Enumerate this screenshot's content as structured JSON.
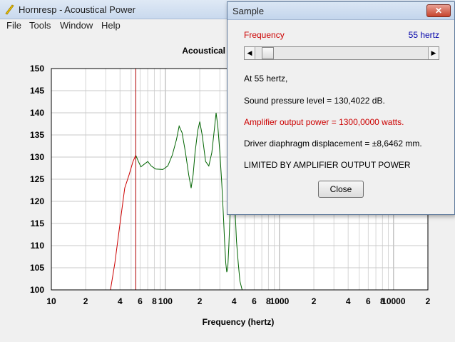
{
  "window": {
    "title": "Hornresp - Acoustical Power"
  },
  "menu": {
    "items": [
      "File",
      "Tools",
      "Window",
      "Help"
    ]
  },
  "chart_data": {
    "type": "line",
    "title": "Acoustical Power (dB)",
    "xlabel": "Frequency (hertz)",
    "ylabel": "",
    "x_scale": "log",
    "xlim": [
      10,
      20000
    ],
    "ylim": [
      100,
      150
    ],
    "yticks": [
      100,
      105,
      110,
      115,
      120,
      125,
      130,
      135,
      140,
      145,
      150
    ],
    "xtick_labels": [
      {
        "f": 10,
        "t": "10"
      },
      {
        "f": 20,
        "t": "2"
      },
      {
        "f": 40,
        "t": "4"
      },
      {
        "f": 60,
        "t": "6"
      },
      {
        "f": 80,
        "t": "8"
      },
      {
        "f": 100,
        "t": "100"
      },
      {
        "f": 200,
        "t": "2"
      },
      {
        "f": 400,
        "t": "4"
      },
      {
        "f": 600,
        "t": "6"
      },
      {
        "f": 800,
        "t": "8"
      },
      {
        "f": 1000,
        "t": "1000"
      },
      {
        "f": 2000,
        "t": "2"
      },
      {
        "f": 4000,
        "t": "4"
      },
      {
        "f": 6000,
        "t": "6"
      },
      {
        "f": 8000,
        "t": "8"
      },
      {
        "f": 10000,
        "t": "10000"
      },
      {
        "f": 20000,
        "t": "2"
      }
    ],
    "grid": true,
    "marker_frequency": 55,
    "series": [
      {
        "color": "#cc0000",
        "points": [
          [
            33,
            100
          ],
          [
            36,
            106
          ],
          [
            40,
            115
          ],
          [
            44,
            123
          ],
          [
            48,
            126
          ],
          [
            52,
            129
          ],
          [
            55,
            130.4
          ]
        ]
      },
      {
        "color": "#006400",
        "points": [
          [
            55,
            130.4
          ],
          [
            58,
            129
          ],
          [
            61,
            127.8
          ],
          [
            66,
            128.5
          ],
          [
            70,
            129
          ],
          [
            75,
            128
          ],
          [
            82,
            127.3
          ],
          [
            95,
            127.2
          ],
          [
            105,
            128
          ],
          [
            115,
            130.5
          ],
          [
            125,
            134
          ],
          [
            132,
            137
          ],
          [
            140,
            135.5
          ],
          [
            150,
            131
          ],
          [
            160,
            126
          ],
          [
            168,
            123
          ],
          [
            175,
            126
          ],
          [
            182,
            131
          ],
          [
            192,
            136
          ],
          [
            200,
            138
          ],
          [
            210,
            135
          ],
          [
            225,
            129
          ],
          [
            240,
            128
          ],
          [
            255,
            131
          ],
          [
            268,
            136
          ],
          [
            278,
            140
          ],
          [
            288,
            137
          ],
          [
            300,
            131
          ],
          [
            312,
            124
          ],
          [
            322,
            117
          ],
          [
            330,
            111
          ],
          [
            338,
            106
          ],
          [
            345,
            104
          ],
          [
            352,
            105
          ],
          [
            360,
            110
          ],
          [
            370,
            118
          ],
          [
            380,
            124
          ],
          [
            392,
            127
          ],
          [
            405,
            120
          ],
          [
            420,
            111
          ],
          [
            435,
            106
          ],
          [
            450,
            102
          ],
          [
            470,
            100
          ]
        ]
      }
    ]
  },
  "dialog": {
    "title": "Sample",
    "close_glyph": "✕",
    "frequency_label": "Frequency",
    "frequency_value": "55 hertz",
    "slider_fraction": 0.04,
    "line_at": "At 55 hertz,",
    "line_spl": "Sound pressure level = 130,4022 dB.",
    "line_power": "Amplifier output power = 1300,0000 watts.",
    "line_displacement": "Driver diaphragm displacement = ±8,6462 mm.",
    "line_limit": "LIMITED BY AMPLIFIER OUTPUT POWER",
    "close_button": "Close"
  }
}
